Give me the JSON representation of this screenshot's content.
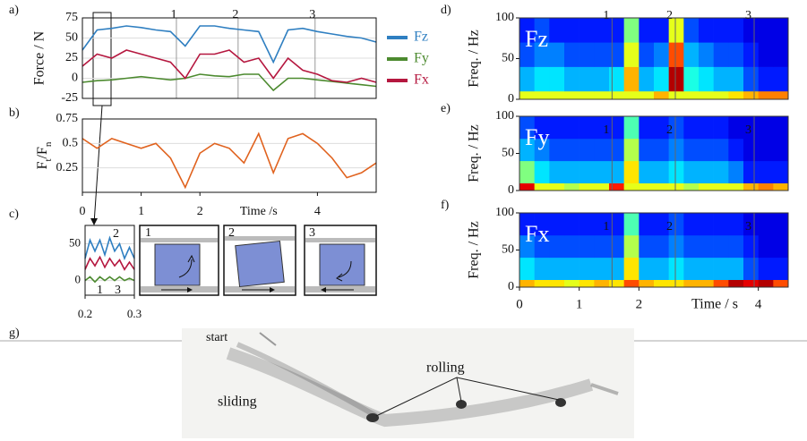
{
  "panel_a": {
    "label": "a)",
    "ylabel": "Force / N",
    "xlim": [
      0,
      5
    ],
    "ylim": [
      -25,
      75
    ],
    "yticks": [
      75,
      50,
      25,
      0,
      -25
    ],
    "markers": [
      {
        "time": 1.6,
        "label": "1"
      },
      {
        "time": 2.65,
        "label": "2"
      },
      {
        "time": 3.96,
        "label": "3"
      }
    ],
    "x": [
      0,
      0.25,
      0.5,
      0.75,
      1,
      1.25,
      1.5,
      1.75,
      2,
      2.25,
      2.5,
      2.75,
      3,
      3.25,
      3.5,
      3.75,
      4,
      4.25,
      4.5,
      4.75,
      5
    ],
    "series": [
      {
        "name": "Fz",
        "color": "#2f7fc1",
        "values": [
          35,
          60,
          62,
          65,
          63,
          60,
          58,
          40,
          65,
          65,
          62,
          60,
          58,
          20,
          60,
          62,
          58,
          55,
          52,
          50,
          45
        ]
      },
      {
        "name": "Fy",
        "color": "#4c8a2f",
        "values": [
          -5,
          -3,
          -2,
          0,
          2,
          0,
          -2,
          0,
          5,
          3,
          2,
          5,
          5,
          -15,
          0,
          0,
          -2,
          -4,
          -6,
          -8,
          -10
        ]
      },
      {
        "name": "Fx",
        "color": "#b5173f",
        "values": [
          15,
          30,
          25,
          35,
          30,
          25,
          20,
          0,
          30,
          30,
          35,
          20,
          25,
          0,
          25,
          10,
          5,
          -3,
          -5,
          0,
          -5
        ]
      }
    ]
  },
  "panel_b": {
    "label": "b)",
    "ylabel_parts": [
      "F",
      "t",
      "/F",
      "n"
    ],
    "xlim": [
      0,
      5
    ],
    "ylim": [
      0,
      0.75
    ],
    "yticks": [
      0.75,
      0.5,
      0.25
    ],
    "xticks": [
      0,
      1,
      2,
      4
    ],
    "xlabel": "Time /s",
    "x": [
      0,
      0.25,
      0.5,
      0.75,
      1,
      1.25,
      1.5,
      1.75,
      2,
      2.25,
      2.5,
      2.75,
      3,
      3.25,
      3.5,
      3.75,
      4,
      4.25,
      4.5,
      4.75,
      5
    ],
    "series": [
      {
        "color": "#e0621e",
        "values": [
          0.55,
          0.45,
          0.55,
          0.5,
          0.45,
          0.5,
          0.35,
          0.05,
          0.4,
          0.5,
          0.45,
          0.3,
          0.6,
          0.2,
          0.55,
          0.6,
          0.5,
          0.35,
          0.15,
          0.2,
          0.3
        ]
      }
    ]
  },
  "panel_c": {
    "label": "c)",
    "xlim": [
      0.2,
      0.3
    ],
    "ylim": [
      -20,
      75
    ],
    "yticks": [
      50,
      0
    ],
    "xticks": [
      0.2,
      0.3
    ],
    "x": [
      0.2,
      0.21,
      0.22,
      0.23,
      0.24,
      0.25,
      0.26,
      0.27,
      0.28,
      0.29,
      0.3
    ],
    "series": [
      {
        "color": "#2f7fc1",
        "values": [
          30,
          55,
          40,
          55,
          35,
          58,
          40,
          50,
          30,
          45,
          30
        ]
      },
      {
        "color": "#b5173f",
        "values": [
          15,
          30,
          20,
          32,
          18,
          30,
          20,
          28,
          15,
          25,
          15
        ]
      },
      {
        "color": "#4c8a2f",
        "values": [
          0,
          5,
          -2,
          5,
          0,
          5,
          0,
          5,
          0,
          3,
          0
        ]
      }
    ],
    "peak_labels": [
      "2",
      "1",
      "3"
    ],
    "diagrams": [
      {
        "label": "1"
      },
      {
        "label": "2"
      },
      {
        "label": "3"
      }
    ]
  },
  "spec_axes": {
    "ylabel": "Freq. / Hz",
    "xlim": [
      0,
      4.5
    ],
    "ylim": [
      0,
      100
    ],
    "yticks": [
      100,
      50,
      0
    ],
    "xticks": [
      0,
      1,
      2,
      4
    ],
    "xlabel": "Time / s",
    "freq_edges": [
      0,
      10,
      40,
      70,
      100
    ],
    "time_step": 0.25,
    "markers": [
      {
        "time": 1.55,
        "label": "1"
      },
      {
        "time": 2.61,
        "label": "2"
      },
      {
        "time": 3.93,
        "label": "3"
      }
    ]
  },
  "spectrograms": [
    {
      "label": "d)",
      "signal": "Fz",
      "matrix": [
        [
          0.6,
          0.6,
          0.6,
          0.6,
          0.6,
          0.6,
          0.6,
          0.6,
          0.6,
          0.7,
          0.6,
          0.6,
          0.6,
          0.6,
          0.65,
          0.7,
          0.75,
          0.75
        ],
        [
          0.3,
          0.35,
          0.35,
          0.3,
          0.3,
          0.3,
          0.35,
          0.7,
          0.3,
          0.35,
          0.95,
          0.4,
          0.35,
          0.3,
          0.3,
          0.2,
          0.15,
          0.15
        ],
        [
          0.2,
          0.25,
          0.25,
          0.2,
          0.2,
          0.2,
          0.2,
          0.6,
          0.2,
          0.25,
          0.8,
          0.3,
          0.25,
          0.2,
          0.2,
          0.15,
          0.1,
          0.1
        ],
        [
          0.15,
          0.2,
          0.15,
          0.15,
          0.15,
          0.15,
          0.15,
          0.5,
          0.15,
          0.15,
          0.6,
          0.2,
          0.15,
          0.15,
          0.15,
          0.1,
          0.1,
          0.1
        ]
      ]
    },
    {
      "label": "e)",
      "signal": "Fy",
      "matrix": [
        [
          0.9,
          0.6,
          0.6,
          0.55,
          0.6,
          0.6,
          0.85,
          0.6,
          0.6,
          0.6,
          0.6,
          0.55,
          0.6,
          0.6,
          0.6,
          0.7,
          0.75,
          0.7
        ],
        [
          0.5,
          0.35,
          0.3,
          0.3,
          0.3,
          0.3,
          0.3,
          0.65,
          0.3,
          0.3,
          0.35,
          0.3,
          0.3,
          0.3,
          0.25,
          0.15,
          0.15,
          0.15
        ],
        [
          0.3,
          0.25,
          0.2,
          0.2,
          0.2,
          0.2,
          0.2,
          0.55,
          0.2,
          0.2,
          0.25,
          0.2,
          0.2,
          0.2,
          0.15,
          0.1,
          0.1,
          0.1
        ],
        [
          0.2,
          0.15,
          0.15,
          0.15,
          0.15,
          0.15,
          0.15,
          0.45,
          0.15,
          0.15,
          0.2,
          0.15,
          0.15,
          0.15,
          0.1,
          0.1,
          0.1,
          0.1
        ]
      ]
    },
    {
      "label": "f)",
      "signal": "Fx",
      "matrix": [
        [
          0.7,
          0.65,
          0.65,
          0.6,
          0.65,
          0.7,
          0.65,
          0.8,
          0.7,
          0.65,
          0.65,
          0.7,
          0.7,
          0.8,
          0.95,
          0.9,
          0.95,
          0.8
        ],
        [
          0.35,
          0.3,
          0.3,
          0.3,
          0.3,
          0.3,
          0.3,
          0.65,
          0.3,
          0.3,
          0.35,
          0.3,
          0.3,
          0.3,
          0.3,
          0.2,
          0.15,
          0.15
        ],
        [
          0.25,
          0.2,
          0.2,
          0.2,
          0.2,
          0.2,
          0.2,
          0.55,
          0.2,
          0.2,
          0.25,
          0.2,
          0.2,
          0.2,
          0.2,
          0.15,
          0.1,
          0.1
        ],
        [
          0.15,
          0.15,
          0.15,
          0.15,
          0.15,
          0.15,
          0.15,
          0.45,
          0.15,
          0.15,
          0.2,
          0.15,
          0.15,
          0.15,
          0.15,
          0.1,
          0.1,
          0.1
        ]
      ]
    }
  ],
  "panel_g": {
    "label": "g)",
    "annotations": [
      "start",
      "sliding",
      "rolling"
    ]
  }
}
